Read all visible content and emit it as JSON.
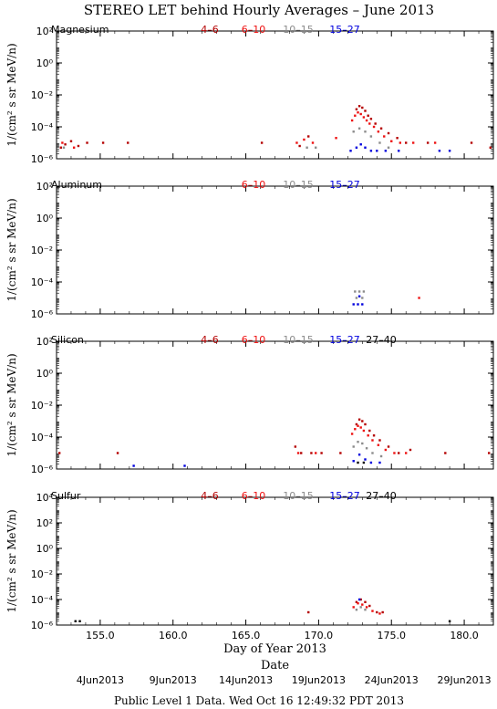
{
  "title": "STEREO LET behind Hourly Averages – June 2013",
  "footer": "Public Level 1 Data. Wed Oct 16 12:49:32 PDT 2013",
  "colors": {
    "c4_6": "#b40000",
    "c6_10": "#ee1111",
    "c10_15": "#8c8c8c",
    "c15_27": "#0000dd",
    "c27_40": "#000000"
  },
  "chart_data": [
    {
      "type": "scatter",
      "element": "Magnesium",
      "ylabel": "1/(cm² s sr MeV/n)",
      "y_log": true,
      "ylim_exp": [
        -6,
        2
      ],
      "yticks": [
        "10²",
        "10⁰",
        "10⁻²",
        "10⁻⁴",
        "10⁻⁶"
      ],
      "xlim": [
        152,
        182
      ],
      "legend": [
        "4–6",
        "6–10",
        "10–15",
        "15–27"
      ],
      "series": [
        {
          "name": "4–6",
          "color": "c4_6",
          "points": [
            [
              152.3,
              -5.3
            ],
            [
              152.6,
              -5.1
            ],
            [
              153.0,
              -4.9
            ],
            [
              153.5,
              -5.2
            ],
            [
              154.1,
              -5.0
            ],
            [
              155.2,
              -5.0
            ],
            [
              156.9,
              -5.0
            ],
            [
              166.1,
              -5.0
            ],
            [
              168.7,
              -5.2
            ],
            [
              169.3,
              -4.6
            ],
            [
              172.6,
              -2.9
            ],
            [
              172.8,
              -2.7
            ],
            [
              173.0,
              -2.8
            ],
            [
              173.2,
              -3.0
            ],
            [
              173.4,
              -3.3
            ],
            [
              173.6,
              -3.5
            ],
            [
              173.9,
              -3.8
            ],
            [
              174.3,
              -4.1
            ],
            [
              174.8,
              -4.4
            ],
            [
              175.4,
              -4.7
            ],
            [
              176.0,
              -5.0
            ],
            [
              177.5,
              -5.0
            ],
            [
              180.5,
              -5.0
            ],
            [
              181.8,
              -5.3
            ]
          ]
        },
        {
          "name": "6–10",
          "color": "c6_10",
          "points": [
            [
              152.4,
              -5.0
            ],
            [
              153.2,
              -5.3
            ],
            [
              168.5,
              -5.0
            ],
            [
              169.0,
              -4.8
            ],
            [
              169.6,
              -5.0
            ],
            [
              171.2,
              -4.7
            ],
            [
              172.3,
              -3.6
            ],
            [
              172.5,
              -3.3
            ],
            [
              172.7,
              -3.1
            ],
            [
              172.9,
              -3.2
            ],
            [
              173.1,
              -3.4
            ],
            [
              173.3,
              -3.6
            ],
            [
              173.5,
              -3.8
            ],
            [
              173.8,
              -4.0
            ],
            [
              174.1,
              -4.3
            ],
            [
              174.5,
              -4.6
            ],
            [
              175.0,
              -4.9
            ],
            [
              175.6,
              -5.0
            ],
            [
              176.5,
              -5.0
            ],
            [
              178.0,
              -5.0
            ]
          ]
        },
        {
          "name": "10–15",
          "color": "c10_15",
          "points": [
            [
              152.5,
              -5.3
            ],
            [
              169.2,
              -5.3
            ],
            [
              169.8,
              -5.3
            ],
            [
              172.4,
              -4.3
            ],
            [
              172.8,
              -4.1
            ],
            [
              173.2,
              -4.3
            ],
            [
              173.6,
              -4.6
            ],
            [
              174.2,
              -5.0
            ],
            [
              174.8,
              -5.3
            ]
          ]
        },
        {
          "name": "15–27",
          "color": "c15_27",
          "points": [
            [
              172.2,
              -5.5
            ],
            [
              172.6,
              -5.3
            ],
            [
              172.9,
              -5.1
            ],
            [
              173.2,
              -5.3
            ],
            [
              173.6,
              -5.5
            ],
            [
              174.0,
              -5.5
            ],
            [
              174.6,
              -5.5
            ],
            [
              175.5,
              -5.5
            ],
            [
              178.3,
              -5.5
            ],
            [
              179.0,
              -5.5
            ]
          ]
        }
      ]
    },
    {
      "type": "scatter",
      "element": "Aluminum",
      "ylabel": "1/(cm² s sr MeV/n)",
      "y_log": true,
      "ylim_exp": [
        -6,
        2
      ],
      "yticks": [
        "10²",
        "10⁰",
        "10⁻²",
        "10⁻⁴",
        "10⁻⁶"
      ],
      "xlim": [
        152,
        182
      ],
      "legend": [
        "6–10",
        "10–15",
        "15–27"
      ],
      "series": [
        {
          "name": "6–10",
          "color": "c6_10",
          "points": [
            [
              176.9,
              -5.0
            ]
          ]
        },
        {
          "name": "10–15",
          "color": "c10_15",
          "points": [
            [
              172.5,
              -4.6
            ],
            [
              172.8,
              -4.6
            ],
            [
              173.1,
              -4.6
            ],
            [
              172.6,
              -5.0
            ],
            [
              173.0,
              -5.0
            ]
          ]
        },
        {
          "name": "15–27",
          "color": "c15_27",
          "points": [
            [
              172.4,
              -5.4
            ],
            [
              172.7,
              -5.4
            ],
            [
              173.0,
              -5.4
            ],
            [
              172.8,
              -4.9
            ]
          ]
        }
      ]
    },
    {
      "type": "scatter",
      "element": "Silicon",
      "ylabel": "1/(cm² s sr MeV/n)",
      "y_log": true,
      "ylim_exp": [
        -6,
        2
      ],
      "yticks": [
        "10²",
        "10⁰",
        "10⁻²",
        "10⁻⁴",
        "10⁻⁶"
      ],
      "xlim": [
        152,
        182
      ],
      "legend": [
        "4–6",
        "6–10",
        "10–15",
        "15–27",
        "27–40"
      ],
      "series": [
        {
          "name": "4–6",
          "color": "c4_6",
          "points": [
            [
              152.2,
              -5.0
            ],
            [
              156.2,
              -5.0
            ],
            [
              168.4,
              -4.6
            ],
            [
              168.8,
              -5.0
            ],
            [
              169.5,
              -5.0
            ],
            [
              170.2,
              -5.0
            ],
            [
              171.5,
              -5.0
            ],
            [
              172.6,
              -3.2
            ],
            [
              172.8,
              -2.9
            ],
            [
              173.0,
              -3.0
            ],
            [
              173.2,
              -3.2
            ],
            [
              173.5,
              -3.6
            ],
            [
              173.8,
              -3.9
            ],
            [
              174.2,
              -4.2
            ],
            [
              174.8,
              -4.6
            ],
            [
              175.5,
              -5.0
            ],
            [
              176.3,
              -4.8
            ],
            [
              178.7,
              -5.0
            ],
            [
              181.7,
              -5.0
            ]
          ]
        },
        {
          "name": "6–10",
          "color": "c6_10",
          "points": [
            [
              168.6,
              -5.0
            ],
            [
              169.8,
              -5.0
            ],
            [
              172.3,
              -3.8
            ],
            [
              172.5,
              -3.5
            ],
            [
              172.7,
              -3.3
            ],
            [
              172.9,
              -3.4
            ],
            [
              173.1,
              -3.6
            ],
            [
              173.4,
              -3.9
            ],
            [
              173.7,
              -4.2
            ],
            [
              174.1,
              -4.5
            ],
            [
              174.6,
              -4.8
            ],
            [
              175.2,
              -5.0
            ],
            [
              176.0,
              -5.0
            ]
          ]
        },
        {
          "name": "10–15",
          "color": "c10_15",
          "points": [
            [
              172.4,
              -4.6
            ],
            [
              172.7,
              -4.3
            ],
            [
              173.0,
              -4.4
            ],
            [
              173.3,
              -4.7
            ],
            [
              173.7,
              -5.0
            ],
            [
              174.3,
              -5.2
            ]
          ]
        },
        {
          "name": "15–27",
          "color": "c15_27",
          "points": [
            [
              157.3,
              -5.8
            ],
            [
              160.8,
              -5.8
            ],
            [
              172.4,
              -5.5
            ],
            [
              172.8,
              -5.1
            ],
            [
              173.2,
              -5.4
            ],
            [
              173.6,
              -5.6
            ],
            [
              174.2,
              -5.6
            ]
          ]
        },
        {
          "name": "27–40",
          "color": "c27_40",
          "points": [
            [
              172.7,
              -5.6
            ],
            [
              173.1,
              -5.6
            ]
          ]
        }
      ]
    },
    {
      "type": "scatter",
      "element": "Sulfur",
      "ylabel": "1/(cm² s sr MeV/n)",
      "xlabel": "Day of Year 2013",
      "y_log": true,
      "ylim_exp": [
        -6,
        4
      ],
      "yticks": [
        "10⁴",
        "10²",
        "10⁰",
        "10⁻²",
        "10⁻⁴",
        "10⁻⁶"
      ],
      "xlim": [
        152,
        182
      ],
      "xticks": [
        155.0,
        160.0,
        165.0,
        170.0,
        175.0,
        180.0
      ],
      "xtick_labels": [
        "155.0",
        "160.0",
        "165.0",
        "170.0",
        "175.0",
        "180.0"
      ],
      "legend": [
        "4–6",
        "6–10",
        "10–15",
        "15–27",
        "27–40"
      ],
      "series": [
        {
          "name": "4–6",
          "color": "c4_6",
          "points": [
            [
              169.3,
              -5.0
            ],
            [
              172.6,
              -4.2
            ],
            [
              172.9,
              -4.0
            ],
            [
              173.2,
              -4.2
            ],
            [
              173.5,
              -4.5
            ],
            [
              174.0,
              -5.0
            ],
            [
              174.4,
              -5.0
            ]
          ]
        },
        {
          "name": "6–10",
          "color": "c6_10",
          "points": [
            [
              172.4,
              -4.6
            ],
            [
              172.7,
              -4.3
            ],
            [
              173.0,
              -4.4
            ],
            [
              173.3,
              -4.6
            ],
            [
              173.7,
              -4.9
            ],
            [
              174.2,
              -5.1
            ]
          ]
        },
        {
          "name": "10–15",
          "color": "c10_15",
          "points": [
            [
              172.6,
              -4.8
            ],
            [
              172.9,
              -4.6
            ],
            [
              173.2,
              -4.8
            ]
          ]
        },
        {
          "name": "15–27",
          "color": "c15_27",
          "points": [
            [
              172.8,
              -4.0
            ]
          ]
        },
        {
          "name": "27–40",
          "color": "c27_40",
          "points": [
            [
              153.3,
              -5.7
            ],
            [
              153.6,
              -5.7
            ],
            [
              179.0,
              -5.7
            ]
          ]
        }
      ]
    }
  ],
  "date_axis": {
    "label": "Date",
    "ticks": [
      {
        "day": 155.0,
        "label": "4Jun2013"
      },
      {
        "day": 160.0,
        "label": "9Jun2013"
      },
      {
        "day": 165.0,
        "label": "14Jun2013"
      },
      {
        "day": 170.0,
        "label": "19Jun2013"
      },
      {
        "day": 175.0,
        "label": "24Jun2013"
      },
      {
        "day": 180.0,
        "label": "29Jun2013"
      }
    ]
  }
}
